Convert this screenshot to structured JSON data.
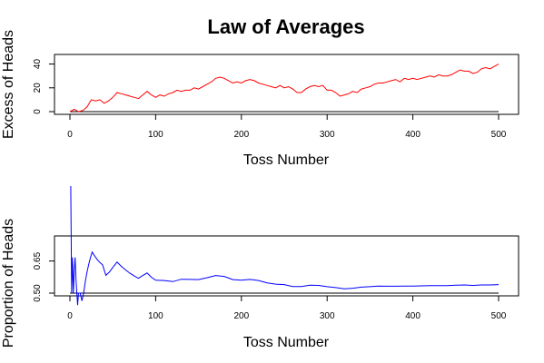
{
  "chart_data": [
    {
      "type": "line",
      "title": "Law of Averages",
      "xlabel": "Toss Number",
      "ylabel": "Excess of Heads",
      "xlim": [
        0,
        500
      ],
      "ylim": [
        0,
        45
      ],
      "x_ticks": [
        0,
        100,
        200,
        300,
        400,
        500
      ],
      "y_ticks": [
        0,
        20,
        40
      ],
      "reference_line": 0,
      "grid": false,
      "color": "#ff0000",
      "series": [
        {
          "x": [
            0,
            5,
            10,
            15,
            20,
            25,
            30,
            35,
            40,
            45,
            50,
            55,
            60,
            65,
            70,
            75,
            80,
            85,
            90,
            95,
            100,
            105,
            110,
            115,
            120,
            125,
            130,
            135,
            140,
            145,
            150,
            155,
            160,
            165,
            170,
            175,
            180,
            185,
            190,
            195,
            200,
            205,
            210,
            215,
            220,
            225,
            230,
            235,
            240,
            245,
            250,
            255,
            260,
            265,
            270,
            275,
            280,
            285,
            290,
            295,
            300,
            305,
            310,
            315,
            320,
            325,
            330,
            335,
            340,
            345,
            350,
            355,
            360,
            365,
            370,
            375,
            380,
            385,
            390,
            395,
            400,
            405,
            410,
            415,
            420,
            425,
            430,
            435,
            440,
            445,
            450,
            455,
            460,
            465,
            470,
            475,
            480,
            485,
            490,
            495,
            500
          ],
          "values": [
            0,
            2,
            0,
            1,
            4,
            10,
            9,
            10,
            7,
            9,
            12,
            16,
            15,
            14,
            13,
            12,
            11,
            14,
            17,
            14,
            12,
            14,
            13,
            15,
            16,
            18,
            17,
            18,
            18,
            20,
            19,
            21,
            23,
            25,
            28,
            29,
            28,
            26,
            24,
            25,
            24,
            26,
            27,
            26,
            24,
            23,
            22,
            21,
            20,
            22,
            20,
            21,
            19,
            16,
            16,
            19,
            21,
            22,
            21,
            22,
            18,
            18,
            16,
            13,
            14,
            15,
            17,
            16,
            19,
            20,
            21,
            23,
            24,
            24,
            25,
            26,
            27,
            25,
            28,
            27,
            28,
            27,
            28,
            29,
            30,
            29,
            31,
            30,
            30,
            31,
            33,
            35,
            34,
            34,
            32,
            33,
            36,
            37,
            36,
            38,
            40
          ]
        }
      ]
    },
    {
      "type": "line",
      "title": "",
      "xlabel": "Toss Number",
      "ylabel": "Proportion of Heads",
      "xlim": [
        0,
        500
      ],
      "ylim": [
        0.5,
        0.75
      ],
      "x_ticks": [
        0,
        100,
        200,
        300,
        400,
        500
      ],
      "y_ticks": [
        0.5,
        0.65
      ],
      "y_tick_labels": [
        "0.50",
        "0.65"
      ],
      "reference_line": 0.5,
      "grid": false,
      "color": "#0000ff",
      "series": [
        {
          "x": [
            1,
            2,
            3,
            4,
            5,
            6,
            7,
            8,
            9,
            10,
            12,
            14,
            16,
            18,
            20,
            22,
            24,
            26,
            28,
            30,
            32,
            35,
            38,
            42,
            46,
            50,
            55,
            60,
            65,
            70,
            75,
            80,
            85,
            90,
            95,
            100,
            110,
            120,
            130,
            140,
            150,
            160,
            170,
            180,
            190,
            200,
            210,
            220,
            230,
            240,
            250,
            260,
            270,
            280,
            290,
            300,
            310,
            320,
            330,
            340,
            350,
            360,
            370,
            380,
            390,
            400,
            410,
            420,
            430,
            440,
            450,
            460,
            470,
            480,
            490,
            500
          ],
          "values": [
            1.0,
            0.5,
            0.667,
            0.5,
            0.6,
            0.667,
            0.571,
            0.5,
            0.444,
            0.5,
            0.5,
            0.464,
            0.5,
            0.556,
            0.6,
            0.636,
            0.667,
            0.692,
            0.679,
            0.667,
            0.656,
            0.643,
            0.632,
            0.583,
            0.598,
            0.62,
            0.645,
            0.625,
            0.608,
            0.593,
            0.58,
            0.569,
            0.582,
            0.594,
            0.574,
            0.56,
            0.559,
            0.554,
            0.565,
            0.564,
            0.563,
            0.572,
            0.582,
            0.578,
            0.563,
            0.56,
            0.564,
            0.559,
            0.548,
            0.542,
            0.54,
            0.531,
            0.531,
            0.537,
            0.536,
            0.53,
            0.526,
            0.52,
            0.523,
            0.528,
            0.53,
            0.533,
            0.532,
            0.532,
            0.533,
            0.533,
            0.534,
            0.535,
            0.535,
            0.535,
            0.537,
            0.538,
            0.536,
            0.538,
            0.538,
            0.54
          ]
        }
      ]
    }
  ]
}
